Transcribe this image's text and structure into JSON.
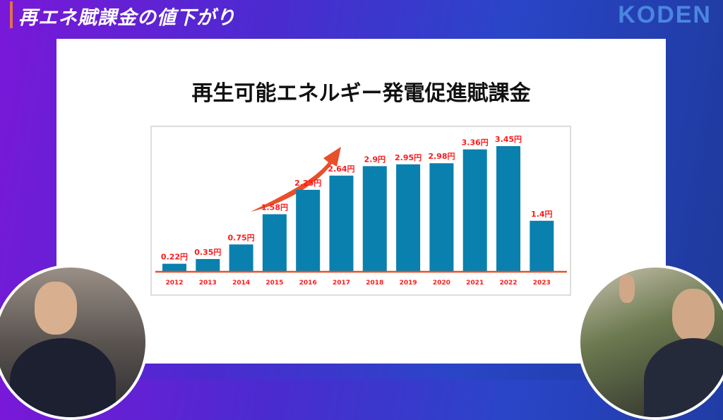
{
  "header": {
    "title": "再エネ賦課金の値下がり",
    "logo": "KODEN"
  },
  "slide": {
    "title": "再生可能エネルギー発電促進賦課金"
  },
  "chart_data": {
    "type": "bar",
    "title": "再生可能エネルギー発電促進賦課金",
    "categories": [
      "2012",
      "2013",
      "2014",
      "2015",
      "2016",
      "2017",
      "2018",
      "2019",
      "2020",
      "2021",
      "2022",
      "2023"
    ],
    "values": [
      0.22,
      0.35,
      0.75,
      1.58,
      2.25,
      2.64,
      2.9,
      2.95,
      2.98,
      3.36,
      3.45,
      1.4
    ],
    "data_labels": [
      "0.22円",
      "0.35円",
      "0.75円",
      "1.58円",
      "2.25円",
      "2.64円",
      "2.9円",
      "2.95円",
      "2.98円",
      "3.36円",
      "3.45円",
      "1.4円"
    ],
    "unit": "円",
    "ylim": [
      0,
      3.6
    ],
    "grid": false,
    "colors": {
      "bar": "#0a80ae",
      "label": "#ff1a1a",
      "axis": "#e8502a",
      "arrow": "#e8502a"
    }
  }
}
